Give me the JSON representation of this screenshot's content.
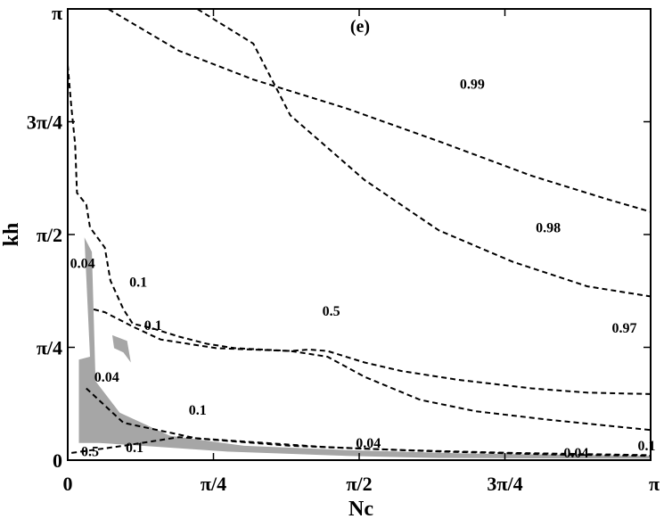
{
  "chart_data": {
    "type": "contour",
    "title": "",
    "panel_label": "(e)",
    "xlabel": "Nc",
    "ylabel": "kh",
    "xlim": [
      0,
      3.14159
    ],
    "ylim": [
      0,
      3.14159
    ],
    "x_ticks": [
      {
        "value": 0,
        "label": "0"
      },
      {
        "value": 0.7854,
        "label": "π/4"
      },
      {
        "value": 1.5708,
        "label": "π/2"
      },
      {
        "value": 2.3562,
        "label": "3π/4"
      },
      {
        "value": 3.14159,
        "label": "π"
      }
    ],
    "y_ticks": [
      {
        "value": 0,
        "label": "0"
      },
      {
        "value": 0.7854,
        "label": "π/4"
      },
      {
        "value": 1.5708,
        "label": "π/2"
      },
      {
        "value": 2.3562,
        "label": "3π/4"
      },
      {
        "value": 3.14159,
        "label": "π"
      }
    ],
    "grid": false,
    "shaded_color": "#a6a6a6",
    "shaded_regions": [
      {
        "points": [
          [
            0.06,
            0.12
          ],
          [
            0.06,
            0.7
          ],
          [
            0.12,
            0.72
          ],
          [
            0.09,
            1.55
          ],
          [
            0.13,
            1.45
          ],
          [
            0.15,
            0.55
          ],
          [
            0.28,
            0.33
          ],
          [
            0.55,
            0.17
          ],
          [
            0.95,
            0.1
          ],
          [
            1.5,
            0.07
          ],
          [
            2.2,
            0.045
          ],
          [
            3.14,
            0.03
          ],
          [
            3.14,
            0.01
          ],
          [
            2.0,
            0.015
          ],
          [
            1.5,
            0.03
          ],
          [
            0.85,
            0.06
          ],
          [
            0.4,
            0.1
          ],
          [
            0.17,
            0.12
          ]
        ]
      },
      {
        "points": [
          [
            0.24,
            0.87
          ],
          [
            0.32,
            0.83
          ],
          [
            0.34,
            0.68
          ],
          [
            0.3,
            0.75
          ],
          [
            0.25,
            0.78
          ]
        ]
      }
    ],
    "contours": [
      {
        "level": "0.99",
        "points": [
          [
            0.22,
            3.14
          ],
          [
            0.6,
            2.85
          ],
          [
            1.0,
            2.65
          ],
          [
            1.5,
            2.45
          ],
          [
            2.0,
            2.22
          ],
          [
            2.5,
            1.98
          ],
          [
            2.9,
            1.82
          ],
          [
            3.14,
            1.73
          ]
        ]
      },
      {
        "level": "0.98",
        "points": [
          [
            0.7,
            3.14
          ],
          [
            1.0,
            2.9
          ],
          [
            1.2,
            2.4
          ],
          [
            1.6,
            1.95
          ],
          [
            2.0,
            1.6
          ],
          [
            2.4,
            1.38
          ],
          [
            2.8,
            1.21
          ],
          [
            3.14,
            1.14
          ]
        ]
      },
      {
        "level": "0.97",
        "points": [
          [
            0.0,
            2.75
          ],
          [
            0.02,
            2.45
          ],
          [
            0.04,
            2.2
          ],
          [
            0.05,
            1.86
          ],
          [
            0.1,
            1.78
          ],
          [
            0.12,
            1.62
          ],
          [
            0.2,
            1.48
          ],
          [
            0.23,
            1.25
          ],
          [
            0.3,
            1.05
          ],
          [
            0.35,
            0.95
          ],
          [
            0.45,
            0.92
          ],
          [
            0.6,
            0.86
          ],
          [
            0.75,
            0.81
          ],
          [
            0.9,
            0.78
          ],
          [
            1.2,
            0.76
          ],
          [
            1.3,
            0.77
          ],
          [
            1.4,
            0.76
          ],
          [
            1.6,
            0.68
          ],
          [
            1.8,
            0.62
          ],
          [
            2.1,
            0.56
          ],
          [
            2.5,
            0.5
          ],
          [
            2.8,
            0.47
          ],
          [
            3.14,
            0.46
          ]
        ]
      },
      {
        "level": "0.5",
        "points": [
          [
            0.14,
            1.05
          ],
          [
            0.2,
            1.03
          ],
          [
            0.35,
            0.93
          ],
          [
            0.5,
            0.84
          ],
          [
            0.8,
            0.78
          ],
          [
            1.2,
            0.76
          ],
          [
            1.4,
            0.72
          ],
          [
            1.6,
            0.58
          ],
          [
            1.9,
            0.42
          ],
          [
            2.2,
            0.34
          ],
          [
            2.6,
            0.28
          ],
          [
            3.14,
            0.21
          ]
        ]
      },
      {
        "level": "0.1",
        "points": [
          [
            0.02,
            0.05
          ],
          [
            0.3,
            0.1
          ],
          [
            0.6,
            0.16
          ],
          [
            0.95,
            0.13
          ],
          [
            1.4,
            0.09
          ],
          [
            2.0,
            0.06
          ],
          [
            2.6,
            0.04
          ],
          [
            3.14,
            0.03
          ]
        ]
      },
      {
        "level": "0.04",
        "points": [
          [
            0.1,
            0.5
          ],
          [
            0.3,
            0.26
          ],
          [
            0.7,
            0.15
          ],
          [
            1.2,
            0.1
          ],
          [
            1.8,
            0.07
          ],
          [
            2.4,
            0.05
          ],
          [
            3.14,
            0.035
          ]
        ]
      }
    ],
    "contour_labels": [
      {
        "text": "0.99",
        "x": 2.18,
        "y": 2.61
      },
      {
        "text": "0.98",
        "x": 2.59,
        "y": 1.61
      },
      {
        "text": "0.97",
        "x": 3.0,
        "y": 0.91
      },
      {
        "text": "0.5",
        "x": 1.42,
        "y": 1.03
      },
      {
        "text": "0.1",
        "x": 0.38,
        "y": 1.23
      },
      {
        "text": "0.1",
        "x": 0.46,
        "y": 0.93
      },
      {
        "text": "0.04",
        "x": 0.08,
        "y": 1.36
      },
      {
        "text": "0.04",
        "x": 0.21,
        "y": 0.57
      },
      {
        "text": "0.1",
        "x": 0.7,
        "y": 0.34
      },
      {
        "text": "0.5",
        "x": 0.12,
        "y": 0.05
      },
      {
        "text": "0.1",
        "x": 0.36,
        "y": 0.08
      },
      {
        "text": "0.04",
        "x": 1.62,
        "y": 0.11
      },
      {
        "text": "0.04",
        "x": 2.74,
        "y": 0.04
      },
      {
        "text": "0.1",
        "x": 3.12,
        "y": 0.09
      }
    ]
  }
}
